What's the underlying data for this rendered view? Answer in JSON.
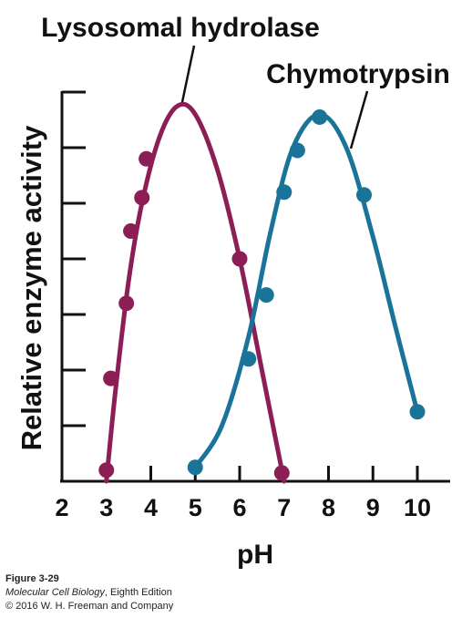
{
  "chart_data": {
    "type": "line",
    "xlabel": "pH",
    "ylabel": "Relative enzyme activity",
    "xlim": [
      2,
      10
    ],
    "ylim": [
      0,
      7
    ],
    "x_ticks": [
      2,
      3,
      4,
      5,
      6,
      7,
      8,
      9,
      10
    ],
    "y_ticks": [
      1,
      2,
      3,
      4,
      5,
      6,
      7
    ],
    "y_tick_labels_shown": false,
    "grid": false,
    "series": [
      {
        "name": "Lysosomal hydrolase",
        "color": "#8c1e55",
        "curve": [
          [
            3.0,
            0
          ],
          [
            3.2,
            1.6
          ],
          [
            3.5,
            3.6
          ],
          [
            3.8,
            5.0
          ],
          [
            4.2,
            6.2
          ],
          [
            4.6,
            6.75
          ],
          [
            5.0,
            6.6
          ],
          [
            5.5,
            5.6
          ],
          [
            6.0,
            4.0
          ],
          [
            6.5,
            2.0
          ],
          [
            7.0,
            0
          ]
        ],
        "points": [
          [
            3.0,
            0.2
          ],
          [
            3.1,
            1.85
          ],
          [
            3.45,
            3.2
          ],
          [
            3.55,
            4.5
          ],
          [
            3.8,
            5.1
          ],
          [
            3.9,
            5.8
          ],
          [
            6.0,
            4.0
          ],
          [
            6.95,
            0.15
          ]
        ]
      },
      {
        "name": "Chymotrypsin",
        "color": "#1a7499",
        "curve": [
          [
            5.0,
            0.25
          ],
          [
            5.6,
            1.0
          ],
          [
            6.2,
            2.6
          ],
          [
            6.7,
            4.5
          ],
          [
            7.2,
            6.0
          ],
          [
            7.8,
            6.6
          ],
          [
            8.4,
            6.0
          ],
          [
            9.0,
            4.4
          ],
          [
            9.5,
            2.8
          ],
          [
            10.0,
            1.25
          ]
        ],
        "points": [
          [
            5.0,
            0.25
          ],
          [
            6.2,
            2.2
          ],
          [
            6.6,
            3.35
          ],
          [
            7.0,
            5.2
          ],
          [
            7.3,
            5.95
          ],
          [
            7.8,
            6.55
          ],
          [
            8.8,
            5.15
          ],
          [
            10.0,
            1.25
          ]
        ]
      }
    ]
  },
  "caption": {
    "figure": "Figure 3-29",
    "book_title": "Molecular Cell Biology",
    "edition": ", Eighth Edition",
    "copyright": "© 2016 W. H. Freeman and Company"
  }
}
